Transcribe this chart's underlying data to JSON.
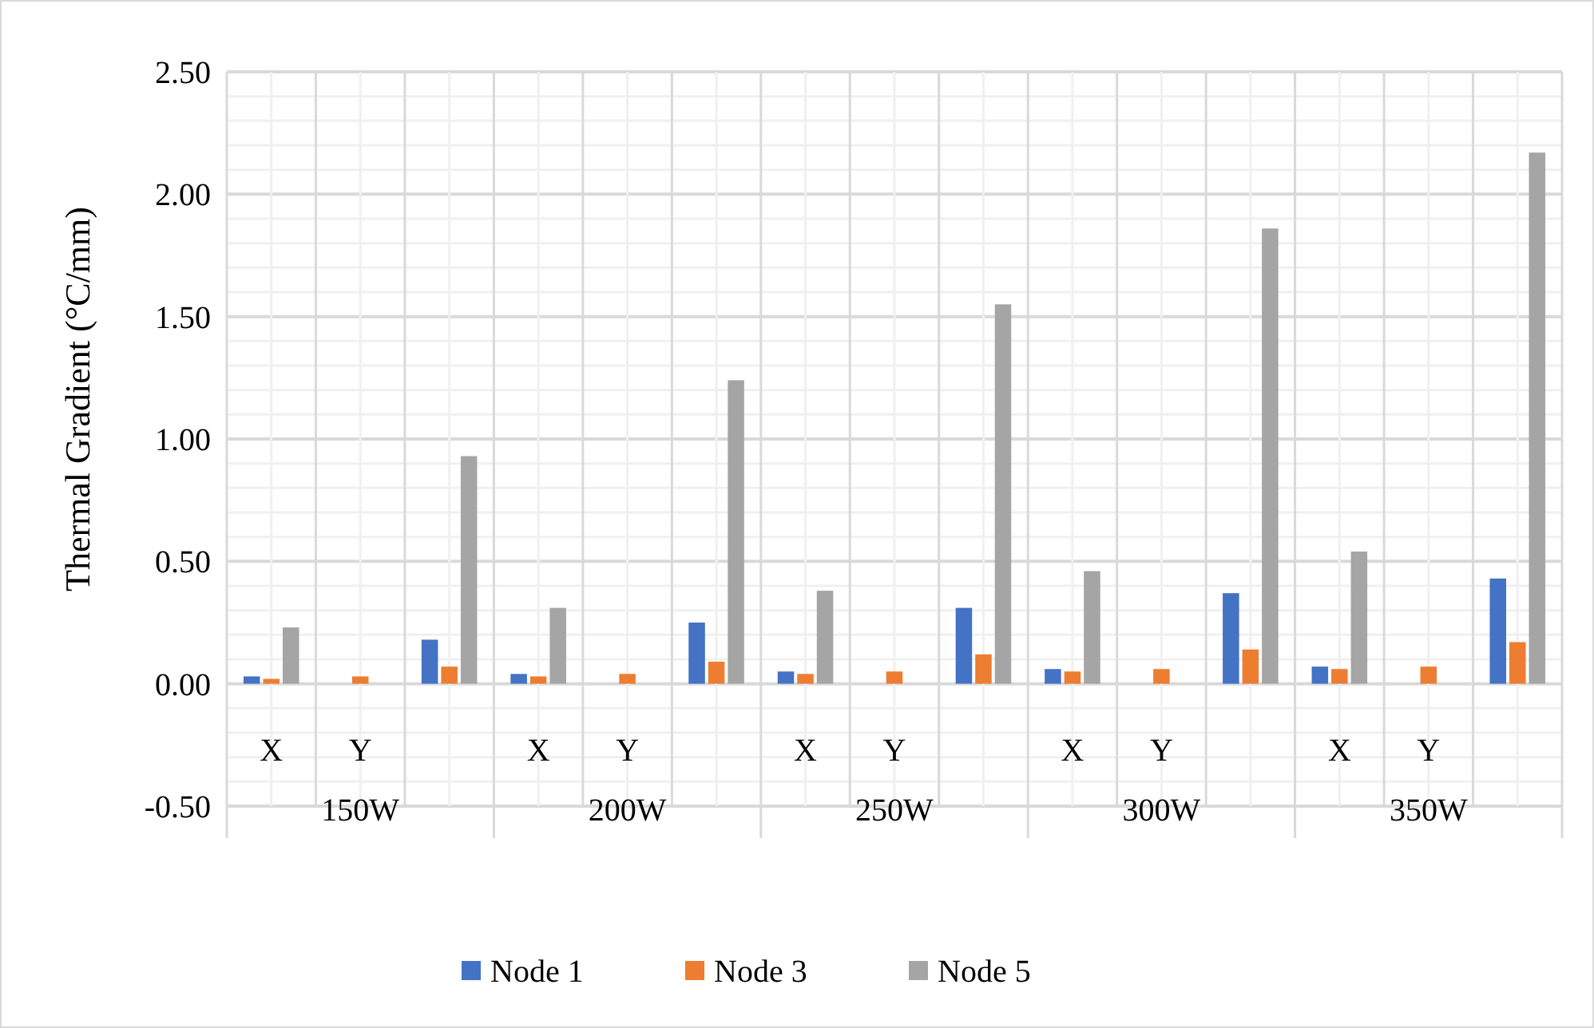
{
  "chart_data": {
    "type": "bar",
    "ylabel": "Thermal Gradient (°C/mm)",
    "categories": [
      "X",
      "Y",
      null,
      "X",
      "Y",
      null,
      "X",
      "Y",
      null,
      "X",
      "Y",
      null,
      "X",
      "Y",
      null
    ],
    "annotations": [
      "150W",
      "200W",
      "250W",
      "300W",
      "350W"
    ],
    "series": [
      {
        "name": "Node 1",
        "color": "#4472c4",
        "values": [
          0.03,
          0,
          0.18,
          0.04,
          0,
          0.25,
          0.05,
          0,
          0.31,
          0.06,
          0,
          0.37,
          0.07,
          0,
          0.43
        ]
      },
      {
        "name": "Node 3",
        "color": "#ed7d31",
        "values": [
          0.02,
          0.03,
          0.07,
          0.03,
          0.04,
          0.09,
          0.04,
          0.05,
          0.12,
          0.05,
          0.06,
          0.14,
          0.06,
          0.07,
          0.17
        ]
      },
      {
        "name": "Node 5",
        "color": "#a5a5a5",
        "values": [
          0.23,
          0,
          0.93,
          0.31,
          0,
          1.24,
          0.38,
          0,
          1.55,
          0.46,
          0,
          1.86,
          0.54,
          0,
          2.17
        ]
      }
    ],
    "ylim": [
      -0.5,
      2.5
    ],
    "yticks": [
      {
        "value": -0.5,
        "label": "-0.50"
      },
      {
        "value": -0.4,
        "label": null
      },
      {
        "value": -0.3,
        "label": null
      },
      {
        "value": -0.2,
        "label": null
      },
      {
        "value": -0.1,
        "label": null
      },
      {
        "value": 0,
        "label": "0.00"
      },
      {
        "value": 0.1,
        "label": null
      },
      {
        "value": 0.2,
        "label": null
      },
      {
        "value": 0.3,
        "label": null
      },
      {
        "value": 0.4,
        "label": null
      },
      {
        "value": 0.5,
        "label": "0.50"
      },
      {
        "value": 0.6,
        "label": null
      },
      {
        "value": 0.7,
        "label": null
      },
      {
        "value": 0.8,
        "label": null
      },
      {
        "value": 0.9,
        "label": null
      },
      {
        "value": 1,
        "label": "1.00"
      },
      {
        "value": 1.1,
        "label": null
      },
      {
        "value": 1.2,
        "label": null
      },
      {
        "value": 1.3,
        "label": null
      },
      {
        "value": 1.4,
        "label": null
      },
      {
        "value": 1.5,
        "label": "1.50"
      },
      {
        "value": 1.6,
        "label": null
      },
      {
        "value": 1.7,
        "label": null
      },
      {
        "value": 1.8,
        "label": null
      },
      {
        "value": 1.9,
        "label": null
      },
      {
        "value": 2,
        "label": "2.00"
      },
      {
        "value": 2.1,
        "label": null
      },
      {
        "value": 2.2,
        "label": null
      },
      {
        "value": 2.3,
        "label": null
      },
      {
        "value": 2.4,
        "label": null
      },
      {
        "value": 2.5,
        "label": "2.50"
      }
    ],
    "grid": true,
    "legend": "bottom"
  }
}
